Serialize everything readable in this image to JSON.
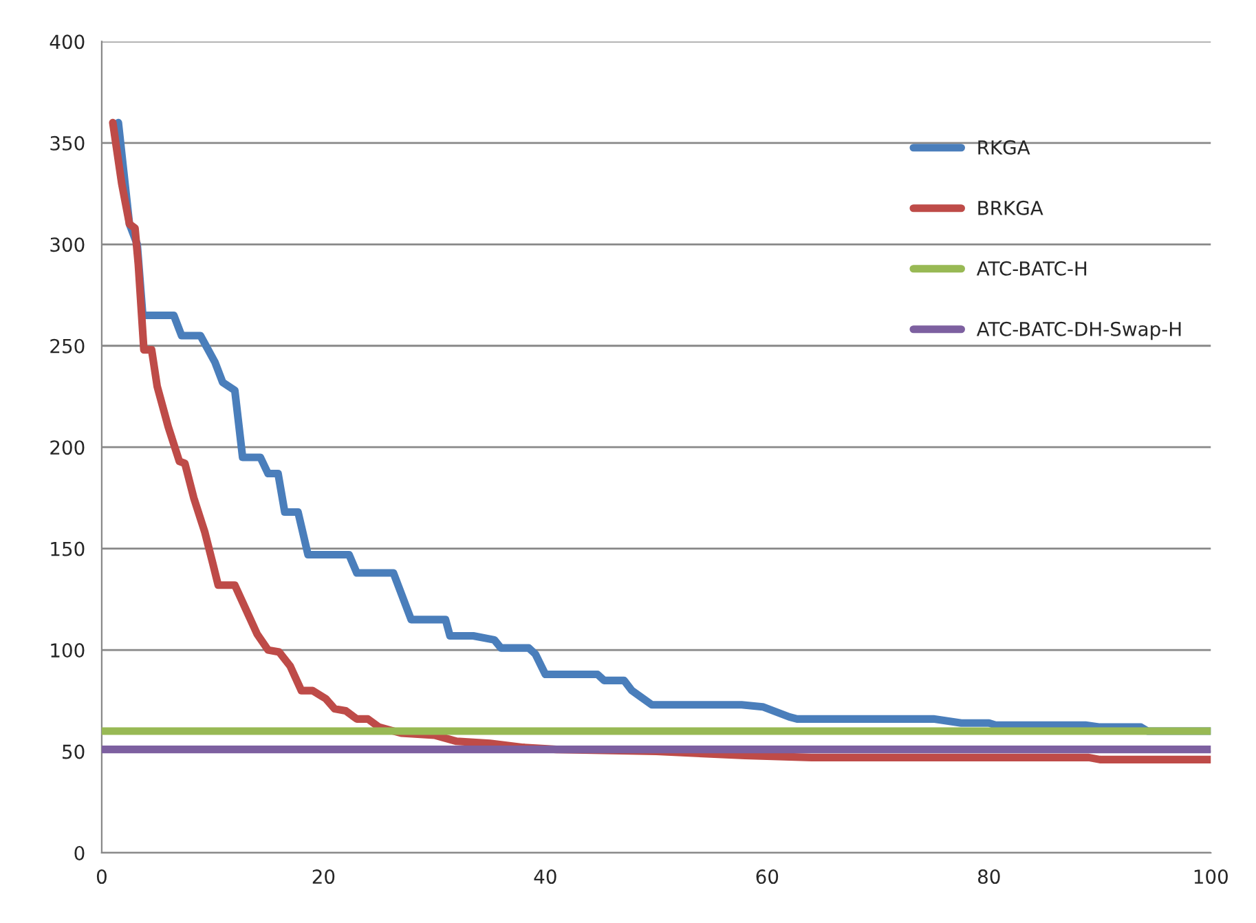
{
  "chart_data": {
    "type": "line",
    "xlim": [
      0,
      100
    ],
    "xticks": [
      0,
      20,
      40,
      60,
      80,
      100
    ],
    "ylim": [
      0,
      400
    ],
    "yticks": [
      0,
      50,
      100,
      150,
      200,
      250,
      300,
      350,
      400
    ],
    "grid": "y",
    "legend": "top right",
    "marker": "none",
    "line_style": "solid",
    "series": [
      {
        "name": "RKGA",
        "color": "#4a7ebb",
        "x": [
          1.5,
          2.5,
          3.2,
          3.7,
          6.5,
          7.2,
          8.9,
          10.2,
          10.9,
          12,
          12.7,
          14.3,
          15,
          15.9,
          16.5,
          17.7,
          18.6,
          22.3,
          23,
          26.3,
          27.9,
          31,
          31.4,
          33.5,
          35.4,
          36,
          38.5,
          39.1,
          40,
          44.7,
          45.3,
          47.1,
          47.8,
          49.6,
          57.7,
          59.6,
          62,
          62.7,
          75,
          77.5,
          80,
          80.6,
          88.7,
          90,
          93.7,
          94.3,
          100
        ],
        "values": [
          360,
          310,
          300,
          265,
          265,
          255,
          255,
          242,
          232,
          228,
          195,
          195,
          187,
          187,
          168,
          168,
          147,
          147,
          138,
          138,
          115,
          115,
          107,
          107,
          105,
          101,
          101,
          98,
          88,
          88,
          85,
          85,
          80,
          73,
          73,
          72,
          67,
          66,
          66,
          64,
          64,
          63,
          63,
          62,
          62,
          60,
          60
        ]
      },
      {
        "name": "BRKGA",
        "color": "#be4b48",
        "x": [
          1,
          1.8,
          2.5,
          3,
          3.3,
          3.8,
          4.5,
          5,
          6,
          7,
          7.5,
          8.3,
          9.3,
          10,
          10.5,
          12,
          13,
          14,
          15,
          16,
          17,
          18,
          19,
          20.2,
          21,
          22,
          23,
          24,
          25,
          27,
          30,
          32,
          35,
          38,
          41,
          50,
          58,
          64,
          89,
          90,
          100
        ],
        "values": [
          360,
          330,
          310,
          308,
          290,
          248,
          248,
          230,
          210,
          193,
          192,
          175,
          158,
          143,
          132,
          132,
          120,
          108,
          100,
          99,
          92,
          80,
          80,
          76,
          71,
          70,
          66,
          66,
          62,
          59,
          58,
          55,
          54,
          52,
          51,
          50,
          48,
          47,
          47,
          46,
          46
        ]
      },
      {
        "name": "ATC-BATC-H",
        "color": "#98b954",
        "x": [
          0,
          100
        ],
        "values": [
          60,
          60
        ]
      },
      {
        "name": "ATC-BATC-DH-Swap-H",
        "color": "#7d60a0",
        "x": [
          0,
          100
        ],
        "values": [
          51,
          51
        ]
      }
    ]
  }
}
